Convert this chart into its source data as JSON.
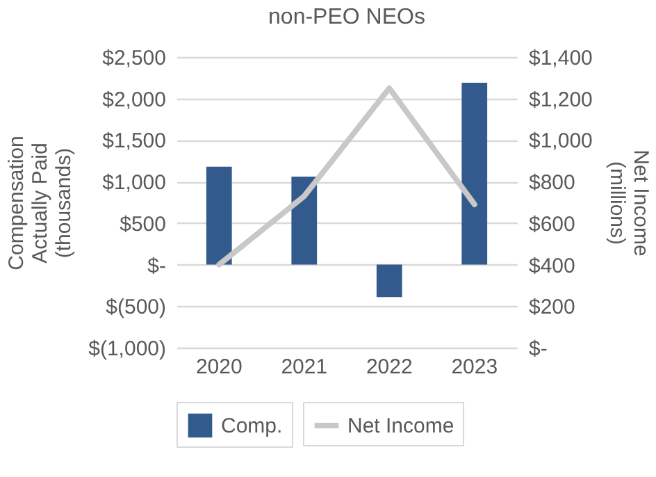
{
  "chart_data": {
    "type": "bar",
    "title": "non-PEO NEOs",
    "ylabel": "Compensation Actually Paid (thousands)",
    "y2label": "Net Income (millions)",
    "categories": [
      "2020",
      "2021",
      "2022",
      "2023"
    ],
    "series": [
      {
        "name": "Comp.",
        "color": "#335a8c",
        "values": [
          1180,
          1060,
          -390,
          2190
        ]
      },
      {
        "name": "Net Income",
        "type": "line",
        "axis": "y2",
        "color": "#c8c8c8",
        "values": [
          400,
          730,
          1250,
          690
        ]
      }
    ],
    "ylim": [
      -1000,
      2500
    ],
    "yticks": [
      {
        "value": -1000,
        "label": "$(1,000)"
      },
      {
        "value": -500,
        "label": "$(500)"
      },
      {
        "value": 0,
        "label": "$-"
      },
      {
        "value": 500,
        "label": "$500"
      },
      {
        "value": 1000,
        "label": "$1,000"
      },
      {
        "value": 1500,
        "label": "$1,500"
      },
      {
        "value": 2000,
        "label": "$2,000"
      },
      {
        "value": 2500,
        "label": "$2,500"
      }
    ],
    "y2lim": [
      0,
      1400
    ],
    "y2ticks": [
      {
        "value": 0,
        "label": "$-"
      },
      {
        "value": 200,
        "label": "$200"
      },
      {
        "value": 400,
        "label": "$400"
      },
      {
        "value": 600,
        "label": "$600"
      },
      {
        "value": 800,
        "label": "$800"
      },
      {
        "value": 1000,
        "label": "$1,000"
      },
      {
        "value": 1200,
        "label": "$1,200"
      },
      {
        "value": 1400,
        "label": "$1,400"
      }
    ],
    "grid": "y",
    "legend": "bottom"
  }
}
